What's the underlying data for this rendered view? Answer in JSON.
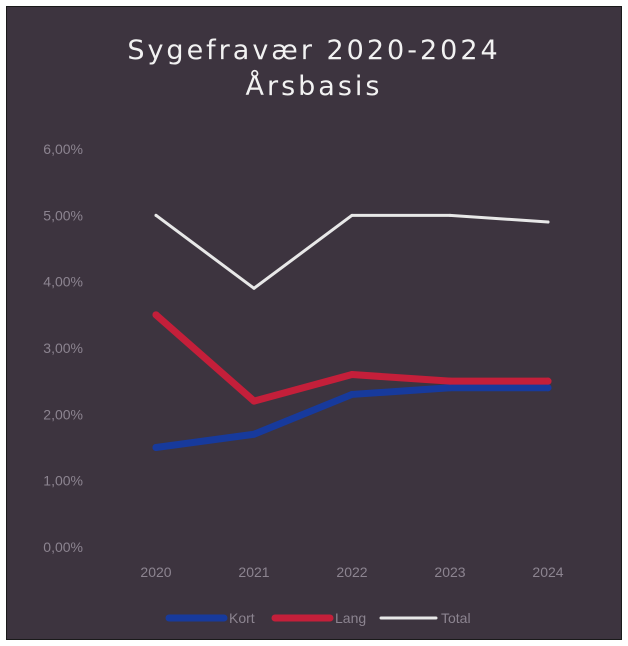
{
  "chart_data": {
    "type": "line",
    "title": "Sygefravær 2020-2024",
    "subtitle": "Årsbasis",
    "categories": [
      "2020",
      "2021",
      "2022",
      "2023",
      "2024"
    ],
    "y_ticks": [
      "0,00%",
      "1,00%",
      "2,00%",
      "3,00%",
      "4,00%",
      "5,00%",
      "6,00%"
    ],
    "ylim": [
      0,
      6
    ],
    "series": [
      {
        "name": "Kort",
        "values": [
          1.5,
          1.7,
          2.3,
          2.4,
          2.4
        ],
        "color": "#173a9c"
      },
      {
        "name": "Lang",
        "values": [
          3.5,
          2.2,
          2.6,
          2.5,
          2.5
        ],
        "color": "#c41f3a"
      },
      {
        "name": "Total",
        "values": [
          5.0,
          3.9,
          5.0,
          5.0,
          4.9
        ],
        "color": "#e8e8e8"
      }
    ],
    "grid": false,
    "legend_position": "bottom"
  }
}
